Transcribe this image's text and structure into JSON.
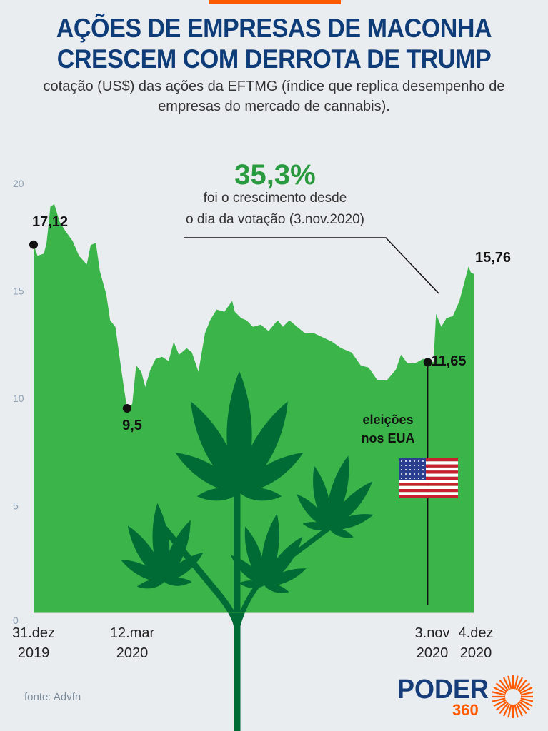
{
  "header": {
    "title_line1": "AÇÕES DE EMPRESAS DE MACONHA",
    "title_line2": "CRESCEM COM DERROTA DE TRUMP",
    "subtitle_line1": "cotação (US$) das ações da EFTMG (índice que replica desempenho de",
    "subtitle_line2": "empresas do mercado de cannabis)."
  },
  "colors": {
    "title": "#0e3c78",
    "area": "#3bb54a",
    "plant": "#006b35",
    "highlight": "#2a9a3e",
    "brand_orange": "#ff5a00"
  },
  "chart_data": {
    "type": "area",
    "ylim": [
      0,
      20
    ],
    "yticks": [
      0,
      5,
      10,
      15,
      20
    ],
    "grid": false,
    "xtick_labels": [
      {
        "date": "2019-12-31",
        "line1": "31.dez",
        "line2": "2019"
      },
      {
        "date": "2020-03-12",
        "line1": "12.mar",
        "line2": "2020"
      },
      {
        "date": "2020-11-03",
        "line1": "3.nov",
        "line2": "2020"
      },
      {
        "date": "2020-12-04",
        "line1": "4.dez",
        "line2": "2020"
      }
    ],
    "series": [
      {
        "x": [
          "2019-12-31",
          "2020-01-03",
          "2020-01-08",
          "2020-01-10",
          "2020-01-13",
          "2020-01-16",
          "2020-01-20",
          "2020-01-24",
          "2020-01-30",
          "2020-02-04",
          "2020-02-10",
          "2020-02-13",
          "2020-02-17",
          "2020-02-20",
          "2020-02-25",
          "2020-02-28",
          "2020-03-03",
          "2020-03-06",
          "2020-03-09",
          "2020-03-12",
          "2020-03-16",
          "2020-03-19",
          "2020-03-23",
          "2020-03-26",
          "2020-03-30",
          "2020-04-03",
          "2020-04-08",
          "2020-04-13",
          "2020-04-17",
          "2020-04-21",
          "2020-04-27",
          "2020-05-01",
          "2020-05-06",
          "2020-05-11",
          "2020-05-15",
          "2020-05-20",
          "2020-05-26",
          "2020-06-01",
          "2020-06-03",
          "2020-06-08",
          "2020-06-12",
          "2020-06-17",
          "2020-06-23",
          "2020-06-29",
          "2020-07-06",
          "2020-07-10",
          "2020-07-15",
          "2020-07-21",
          "2020-07-27",
          "2020-08-03",
          "2020-08-10",
          "2020-08-17",
          "2020-08-24",
          "2020-09-01",
          "2020-09-08",
          "2020-09-14",
          "2020-09-21",
          "2020-09-28",
          "2020-10-05",
          "2020-10-09",
          "2020-10-14",
          "2020-10-20",
          "2020-10-26",
          "2020-11-03",
          "2020-11-05",
          "2020-11-09",
          "2020-11-13",
          "2020-11-18",
          "2020-11-23",
          "2020-11-30",
          "2020-12-02",
          "2020-12-04"
        ],
        "y": [
          17.12,
          16.6,
          16.7,
          17.2,
          18.9,
          19.0,
          18.2,
          17.8,
          17.3,
          16.6,
          16.2,
          17.1,
          17.2,
          15.9,
          14.8,
          13.6,
          13.3,
          12.0,
          10.7,
          9.5,
          9.7,
          11.5,
          11.2,
          10.5,
          11.3,
          11.8,
          11.9,
          11.7,
          12.6,
          12.0,
          12.3,
          12.1,
          11.2,
          13.0,
          13.6,
          14.1,
          14.0,
          14.5,
          14.0,
          13.7,
          13.6,
          13.3,
          13.4,
          13.1,
          13.6,
          13.3,
          13.6,
          13.3,
          13.0,
          13.0,
          12.8,
          12.6,
          12.3,
          12.1,
          11.5,
          11.4,
          10.8,
          10.8,
          11.3,
          12.0,
          11.6,
          11.6,
          11.8,
          11.65,
          13.9,
          13.3,
          13.7,
          13.8,
          14.5,
          16.1,
          15.8,
          15.76
        ]
      }
    ],
    "annotations": [
      {
        "date": "2019-12-31",
        "value": 17.12,
        "label": "17,12"
      },
      {
        "date": "2020-03-12",
        "value": 9.5,
        "label": "9,5"
      },
      {
        "date": "2020-11-03",
        "value": 11.65,
        "label": "11,65"
      },
      {
        "date": "2020-12-04",
        "value": 15.76,
        "label": "15,76"
      }
    ],
    "highlight": {
      "value": "35,3%",
      "line1": "foi o crescimento desde",
      "line2": "o dia da votação (3.nov.2020)"
    },
    "event": {
      "line1": "eleições",
      "line2": "nos EUA",
      "icon": "us-flag-icon"
    }
  },
  "footer": {
    "source": "fonte: Advfn",
    "logo_text": "PODER",
    "logo_number": "360"
  }
}
